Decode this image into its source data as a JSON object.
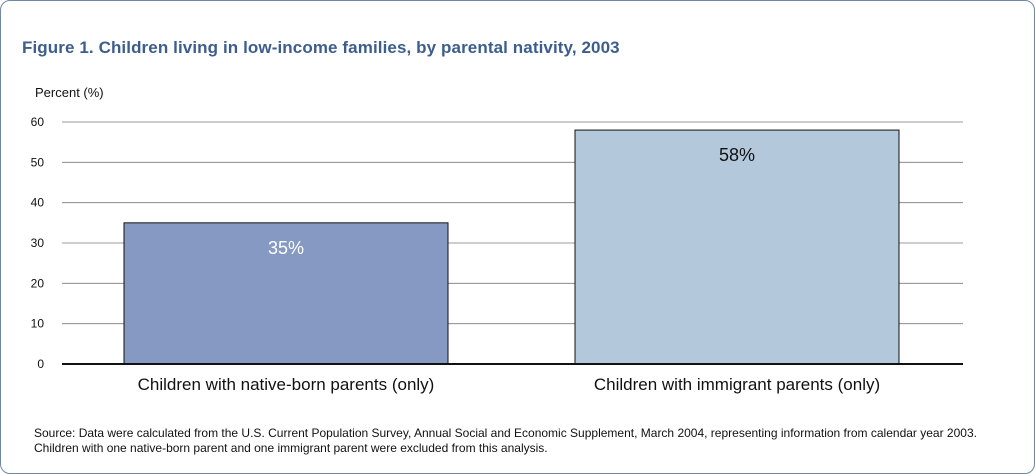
{
  "figure": {
    "title": "Figure 1. Children living in low-income families, by parental nativity, 2003",
    "source_note": "Source: Data were calculated from the U.S. Current Population Survey, Annual Social and Economic Supplement, March 2004, representing information from calendar year 2003. Children with one native-born parent and one immigrant parent were excluded from this analysis."
  },
  "colors": {
    "title": "#3d5e8c",
    "frame": "#6f88a6",
    "bar_native": "#8599c2",
    "bar_immigrant": "#b3c8da",
    "grid": "#7a7a7a"
  },
  "chart_data": {
    "type": "bar",
    "title": "Figure 1. Children living in low-income families, by parental nativity, 2003",
    "ylabel": "Percent (%)",
    "xlabel": "",
    "categories": [
      "Children with native-born parents (only)",
      "Children with immigrant parents (only)"
    ],
    "values": [
      35,
      58
    ],
    "data_labels": [
      "35%",
      "58%"
    ],
    "ylim": [
      0,
      60
    ],
    "yticks": [
      0,
      10,
      20,
      30,
      40,
      50,
      60
    ],
    "grid": true,
    "legend": "none"
  }
}
